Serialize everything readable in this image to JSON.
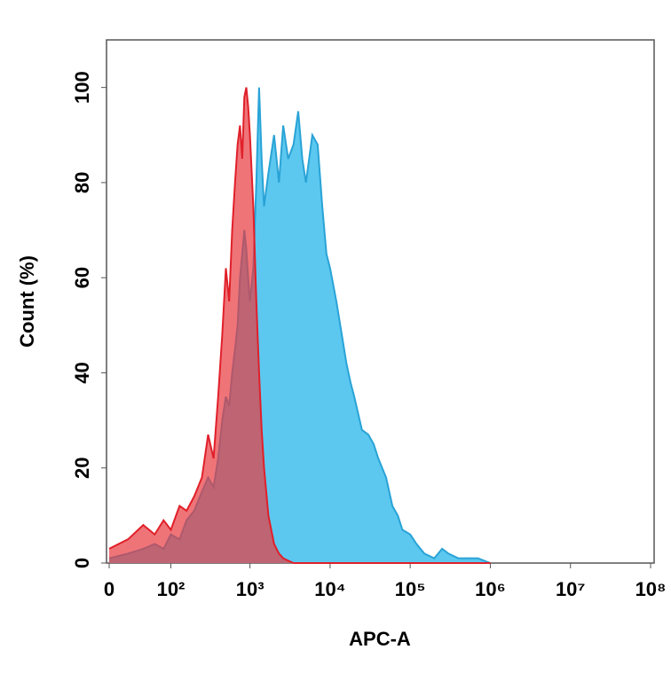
{
  "chart_data": {
    "type": "area",
    "x_label": "APC-A",
    "y_label": "Count (%)",
    "x": [
      0,
      20,
      40,
      60,
      80,
      100,
      130,
      160,
      200,
      250,
      300,
      350,
      400,
      450,
      500,
      550,
      600,
      650,
      700,
      750,
      800,
      850,
      900,
      950,
      1000,
      1100,
      1200,
      1300,
      1400,
      1500,
      1700,
      2000,
      2300,
      2600,
      3000,
      3500,
      4000,
      4500,
      5000,
      6000,
      7000,
      8000,
      9000,
      10000,
      12000,
      14000,
      16000,
      18000,
      20000,
      25000,
      30000,
      35000,
      40000,
      50000,
      60000,
      70000,
      80000,
      100000,
      120000,
      150000,
      200000,
      250000,
      300000,
      400000,
      500000,
      700000,
      1000000
    ],
    "series": [
      {
        "color": "#5cc8ef",
        "line_color": "#29a3d6",
        "values": [
          1,
          2,
          3,
          4,
          3,
          6,
          5,
          9,
          11,
          15,
          18,
          16,
          22,
          30,
          35,
          33,
          40,
          45,
          50,
          60,
          65,
          70,
          66,
          60,
          55,
          62,
          80,
          100,
          85,
          75,
          82,
          90,
          80,
          92,
          85,
          88,
          95,
          85,
          80,
          90,
          88,
          75,
          65,
          62,
          55,
          48,
          42,
          38,
          35,
          28,
          27,
          25,
          22,
          18,
          12,
          10,
          7,
          6,
          4,
          2,
          1,
          3,
          2,
          1,
          1,
          1,
          0
        ]
      },
      {
        "color": "#e8393f",
        "line_color": "#e0202a",
        "values": [
          3,
          5,
          8,
          6,
          9,
          7,
          12,
          11,
          14,
          18,
          27,
          22,
          35,
          48,
          62,
          55,
          70,
          80,
          88,
          92,
          85,
          98,
          100,
          96,
          90,
          75,
          55,
          40,
          28,
          20,
          10,
          4,
          2,
          1,
          0.5,
          0,
          0,
          0,
          0,
          0,
          0,
          0,
          0,
          0,
          0,
          0,
          0,
          0,
          0,
          0,
          0,
          0,
          0,
          0,
          0,
          0,
          0,
          0,
          0,
          0,
          0,
          0,
          0,
          0,
          0,
          0,
          0
        ]
      }
    ],
    "xscale": "biexponential",
    "xlim": [
      0,
      100000000
    ],
    "xticks": [
      0,
      {
        "value": 100,
        "label": "10²"
      },
      {
        "value": 1000,
        "label": "10³"
      },
      {
        "value": 10000,
        "label": "10⁴"
      },
      {
        "value": 100000,
        "label": "10⁵"
      },
      {
        "value": 1000000,
        "label": "10⁶"
      },
      {
        "value": 10000000,
        "label": "10⁷"
      },
      {
        "value": 100000000,
        "label": "10⁸"
      }
    ],
    "ylim": [
      0,
      110
    ],
    "yticks": [
      0,
      20,
      40,
      60,
      80,
      100
    ]
  }
}
